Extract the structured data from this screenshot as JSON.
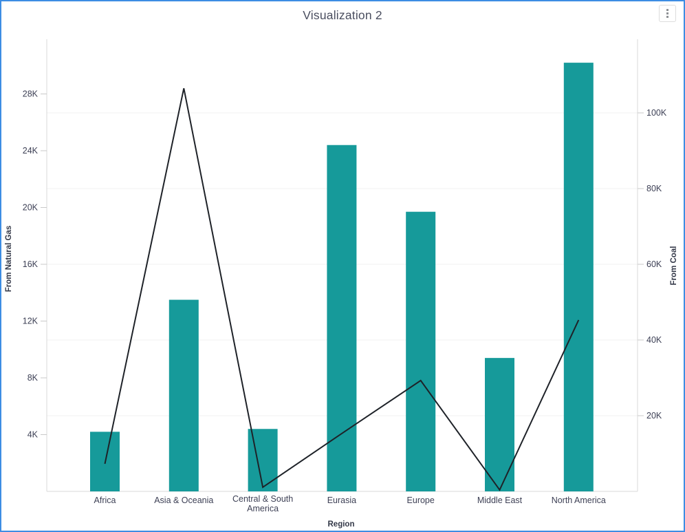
{
  "widget": {
    "title": "Visualization 2",
    "menu_icon": "kebab-vertical-menu"
  },
  "colors": {
    "bar": "#169A9A",
    "line": "#1E2228",
    "border": "#3D8DE3",
    "grid": "#F1F1F2",
    "axis_line": "#DADADA",
    "tick_mark": "#C9C9C9",
    "tick_text": "#3D4055",
    "axis_title_text": "#333848",
    "title_text": "#4A4E5F"
  },
  "chart_data": {
    "type": "bar",
    "subtype": "combo-bar-line-dual-axis",
    "title": "Visualization 2",
    "xlabel": "Region",
    "categories": [
      "Africa",
      "Asia & Oceania",
      "Central & South America",
      "Eurasia",
      "Europe",
      "Middle East",
      "North America"
    ],
    "category_label_lines": [
      [
        "Africa"
      ],
      [
        "Asia & Oceania"
      ],
      [
        "Central & South",
        "America"
      ],
      [
        "Eurasia"
      ],
      [
        "Europe"
      ],
      [
        "Middle East"
      ],
      [
        "North America"
      ]
    ],
    "series": [
      {
        "name": "From Natural Gas",
        "type": "bar",
        "axis": "left",
        "values": [
          4200,
          13500,
          4400,
          24400,
          19700,
          9400,
          30200
        ]
      },
      {
        "name": "From Coal",
        "type": "line",
        "axis": "right",
        "values": [
          7300,
          106500,
          1100,
          15300,
          29300,
          400,
          45300
        ]
      }
    ],
    "left_axis": {
      "title": "From Natural Gas",
      "tick_values": [
        4000,
        8000,
        12000,
        16000,
        20000,
        24000,
        28000
      ],
      "tick_labels": [
        "4K",
        "8K",
        "12K",
        "16K",
        "20K",
        "24K",
        "28K"
      ],
      "range": [
        0,
        31850
      ]
    },
    "right_axis": {
      "title": "From Coal",
      "tick_values": [
        20000,
        40000,
        60000,
        80000,
        100000
      ],
      "tick_labels": [
        "20K",
        "40K",
        "60K",
        "80K",
        "100K"
      ],
      "range": [
        0,
        119450
      ]
    },
    "grid": "horizontal-at-right-axis-ticks",
    "legend": "none"
  }
}
